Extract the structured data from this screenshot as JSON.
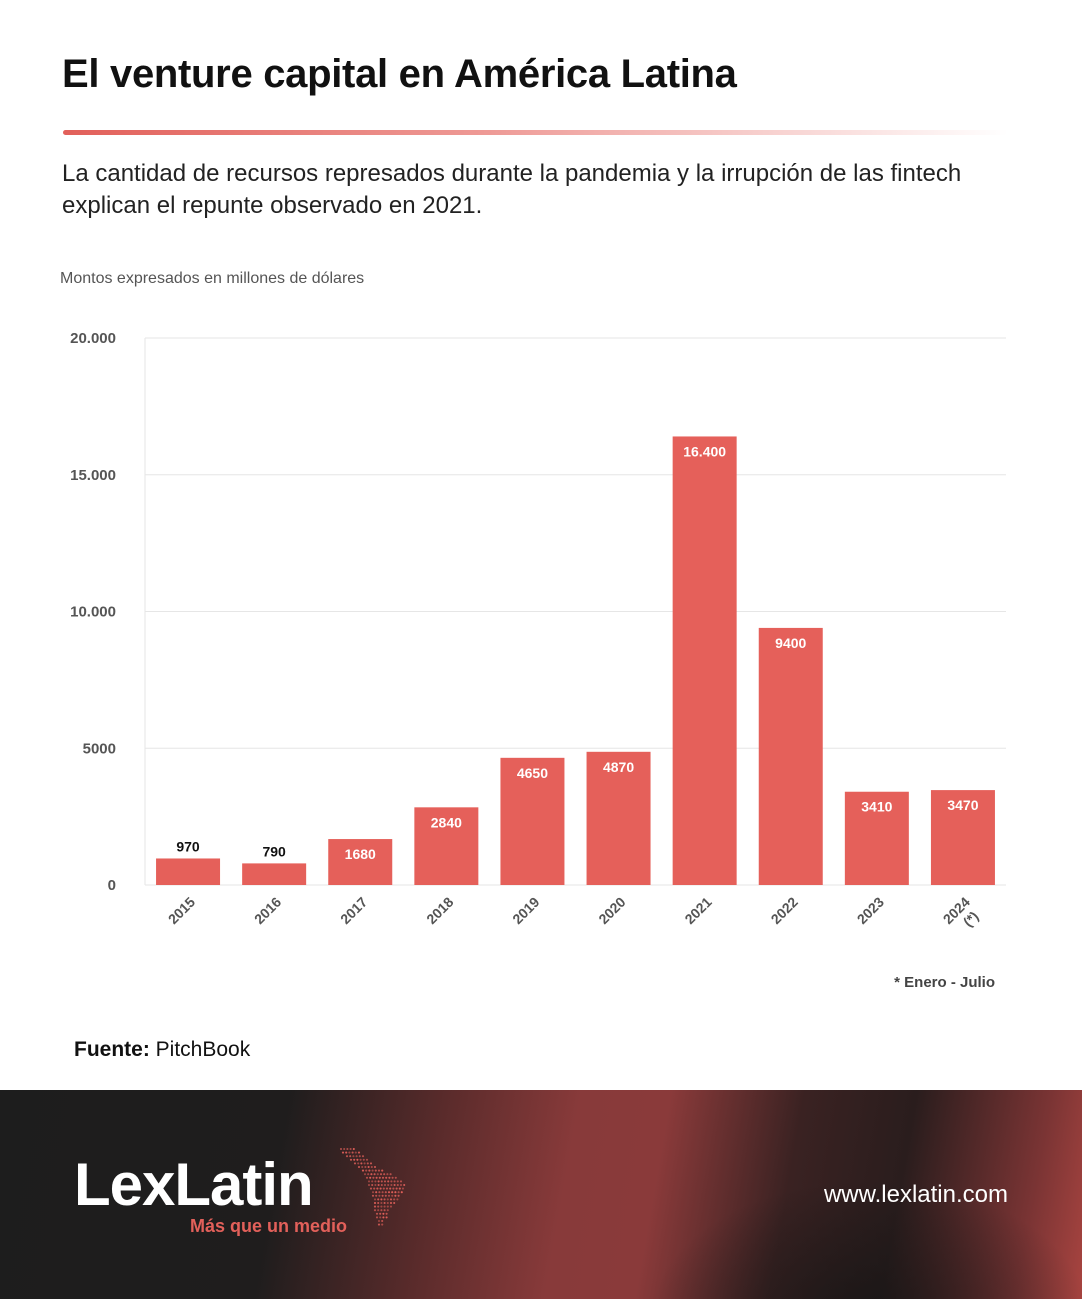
{
  "header": {
    "title": "El venture capital en América Latina",
    "subtitle": "La cantidad de recursos represados durante la pandemia y la irrupción de las fintech explican el repunte observado en 2021."
  },
  "chart_data": {
    "type": "bar",
    "title": "",
    "units_note": "Montos expresados en millones de dólares",
    "categories": [
      "2015",
      "2016",
      "2017",
      "2018",
      "2019",
      "2020",
      "2021",
      "2022",
      "2023",
      "2024\n(*)"
    ],
    "values": [
      970,
      790,
      1680,
      2840,
      4650,
      4870,
      16400,
      9400,
      3410,
      3470
    ],
    "data_labels": [
      "970",
      "790",
      "1680",
      "2840",
      "4650",
      "4870",
      "16.400",
      "9400",
      "3410",
      "3470"
    ],
    "yticks": [
      0,
      5000,
      10000,
      15000,
      20000
    ],
    "ytick_labels": [
      "0",
      "5000",
      "10.000",
      "15.000",
      "20.000"
    ],
    "ylim": [
      0,
      20000
    ],
    "xlabel": "",
    "ylabel": "",
    "grid": true,
    "bar_color": "#e5605a",
    "footnote": "* Enero - Julio"
  },
  "source": {
    "label": "Fuente:",
    "value": "PitchBook"
  },
  "footer": {
    "brand": "LexLatin",
    "tagline": "Más que un medio",
    "website": "www.lexlatin.com",
    "logo_icon": "latin-america-map-icon",
    "accent_color": "#e2605a"
  }
}
